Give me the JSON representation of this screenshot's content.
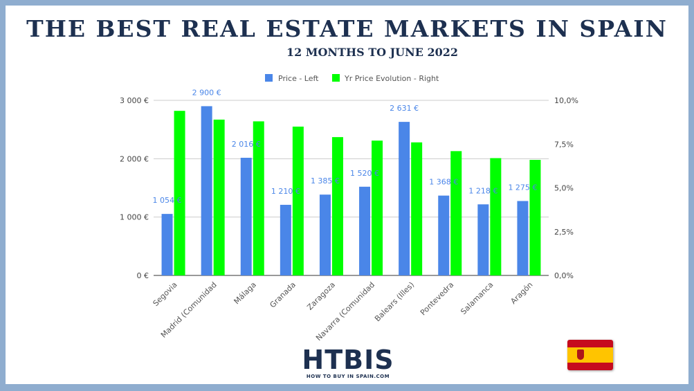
{
  "title": "THE BEST REAL ESTATE MARKETS IN SPAIN",
  "subtitle": "12 MONTHS TO JUNE 2022",
  "logo": {
    "text": "HTBIS",
    "tagline": "HOW TO BUY IN SPAIN.COM"
  },
  "chart_data": {
    "type": "bar",
    "categories": [
      "Segovia",
      "Madrid (Comunidad",
      "Málaga",
      "Granada",
      "Zaragoza",
      "Navarra (Comunidad",
      "Balears (Illes)",
      "Pontevedra",
      "Salamanca",
      "Aragón"
    ],
    "series": [
      {
        "name": "Price - Left",
        "axis": "left",
        "color": "#4a86e8",
        "values": [
          1054,
          2900,
          2016,
          1210,
          1385,
          1520,
          2631,
          1368,
          1218,
          1275
        ],
        "data_labels": [
          "1 054 €",
          "2 900 €",
          "2 016 €",
          "1 210 €",
          "1 385 €",
          "1 520 €",
          "2 631 €",
          "1 368 €",
          "1 218 €",
          "1 275 €"
        ]
      },
      {
        "name": "Yr Price Evolution - Right",
        "axis": "right",
        "color": "#00ff00",
        "values": [
          9.4,
          8.9,
          8.8,
          8.5,
          7.9,
          7.7,
          7.6,
          7.1,
          6.7,
          6.6
        ]
      }
    ],
    "left_axis": {
      "ylim": [
        0,
        3000
      ],
      "ticks": [
        0,
        1000,
        2000,
        3000
      ],
      "tick_labels": [
        "0 €",
        "1 000 €",
        "2 000 €",
        "3 000 €"
      ]
    },
    "right_axis": {
      "ylim": [
        0,
        10
      ],
      "ticks": [
        0,
        2.5,
        5,
        7.5,
        10
      ],
      "tick_labels": [
        "0,0%",
        "2,5%",
        "5,0%",
        "7,5%",
        "10,0%"
      ]
    },
    "legend_position": "top",
    "grid": true,
    "label_color": "#4a86e8"
  }
}
